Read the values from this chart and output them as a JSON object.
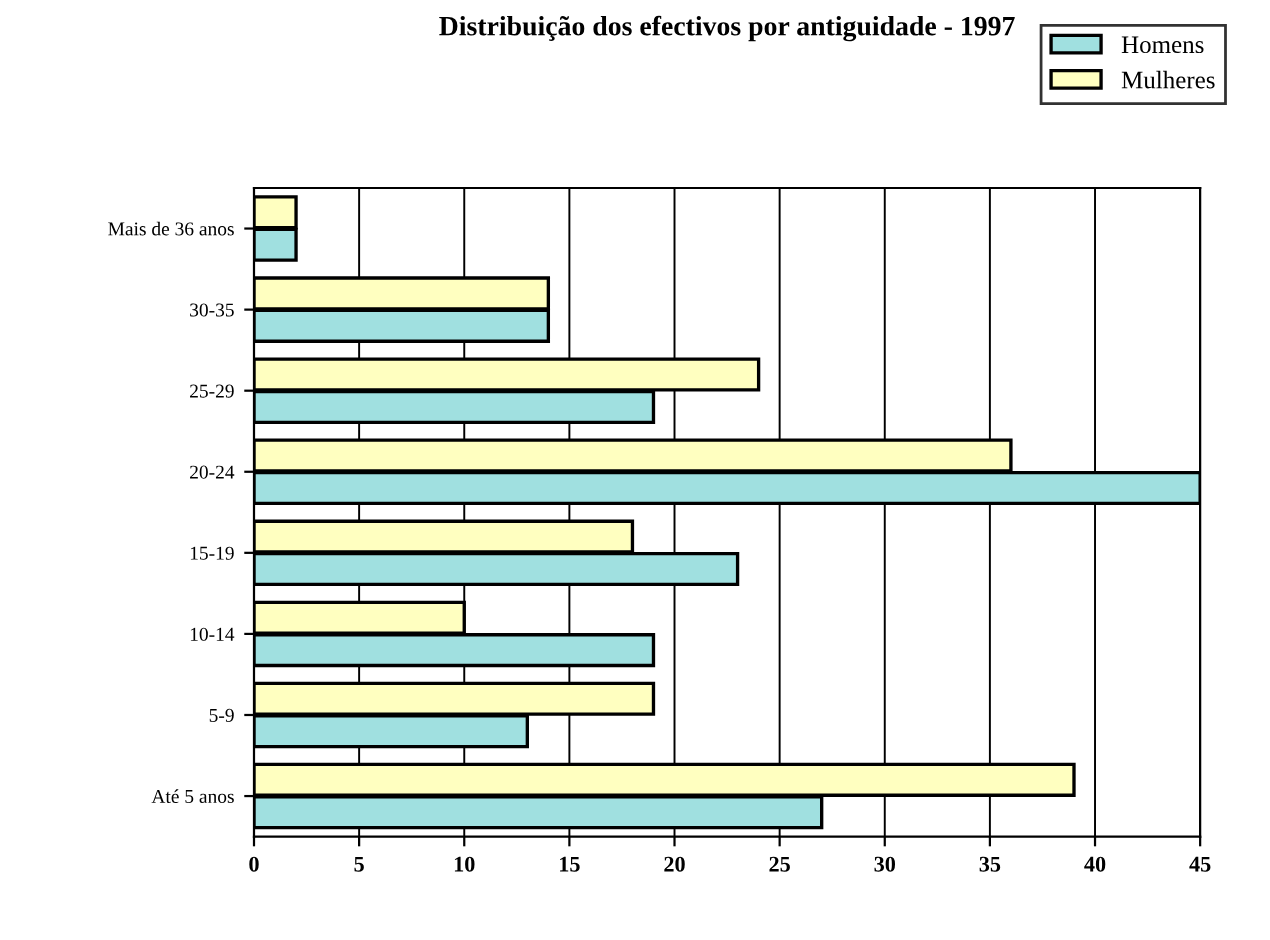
{
  "chart_data": {
    "type": "bar",
    "orientation": "horizontal",
    "title": "Distribuição dos efectivos por antiguidade - 1997",
    "categories": [
      "Mais de 36 anos",
      "30-35",
      "25-29",
      "20-24",
      "15-19",
      "10-14",
      "5-9",
      "Até 5 anos"
    ],
    "series": [
      {
        "name": "Mulheres",
        "color": "#ffffc0",
        "values": [
          2,
          14,
          24,
          36,
          18,
          10,
          19,
          39
        ]
      },
      {
        "name": "Homens",
        "color": "#a0e0e0",
        "values": [
          2,
          14,
          19,
          45,
          23,
          19,
          13,
          27
        ]
      }
    ],
    "xlim": [
      0,
      45
    ],
    "xticks": [
      0,
      5,
      10,
      15,
      20,
      25,
      30,
      35,
      40,
      45
    ],
    "grid": "x",
    "legend": "top right"
  }
}
